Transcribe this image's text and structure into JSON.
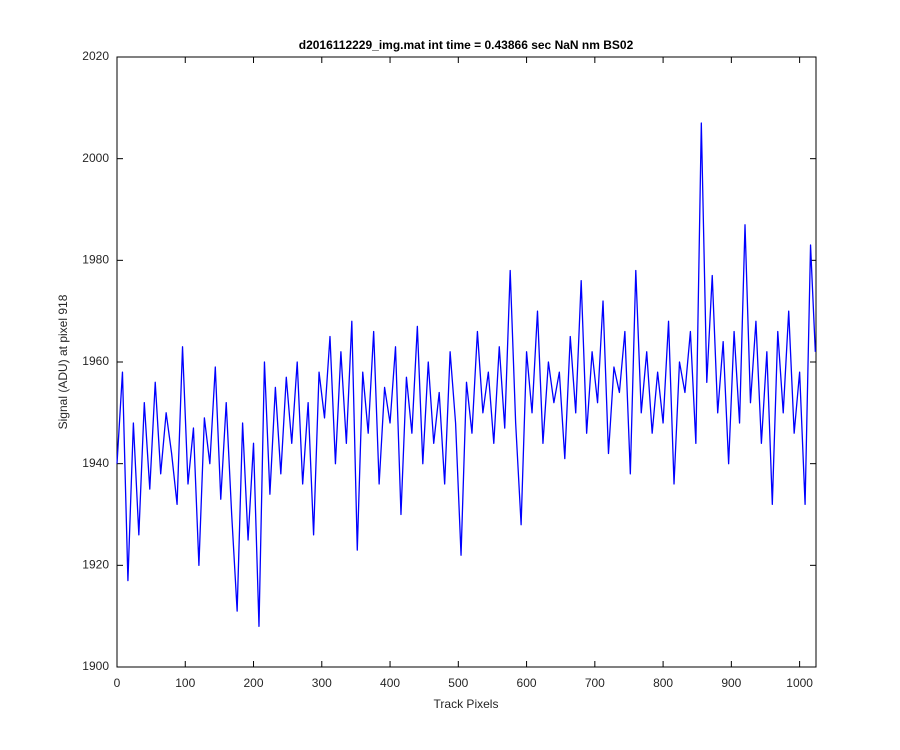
{
  "chart_data": {
    "type": "line",
    "title": "d2016112229_img.mat int time = 0.43866 sec  NaN nm BS02",
    "x_label": "Track Pixels",
    "y_label": "Signal (ADU) at pixel 918",
    "x": [
      0,
      8,
      16,
      24,
      32,
      40,
      48,
      56,
      64,
      72,
      80,
      88,
      96,
      104,
      112,
      120,
      128,
      136,
      144,
      152,
      160,
      168,
      176,
      184,
      192,
      200,
      208,
      216,
      224,
      232,
      240,
      248,
      256,
      264,
      272,
      280,
      288,
      296,
      304,
      312,
      320,
      328,
      336,
      344,
      352,
      360,
      368,
      376,
      384,
      392,
      400,
      408,
      416,
      424,
      432,
      440,
      448,
      456,
      464,
      472,
      480,
      488,
      496,
      504,
      512,
      520,
      528,
      536,
      544,
      552,
      560,
      568,
      576,
      584,
      592,
      600,
      608,
      616,
      624,
      632,
      640,
      648,
      656,
      664,
      672,
      680,
      688,
      696,
      704,
      712,
      720,
      728,
      736,
      744,
      752,
      760,
      768,
      776,
      784,
      792,
      800,
      808,
      816,
      824,
      832,
      840,
      848,
      856,
      864,
      872,
      880,
      888,
      896,
      904,
      912,
      920,
      928,
      936,
      944,
      952,
      960,
      968,
      976,
      984,
      992,
      1000,
      1008,
      1016,
      1023
    ],
    "series": [
      {
        "color": "#0000ff",
        "values": [
          1940,
          1958,
          1917,
          1948,
          1926,
          1952,
          1935,
          1956,
          1938,
          1950,
          1942,
          1932,
          1963,
          1936,
          1947,
          1920,
          1949,
          1940,
          1959,
          1933,
          1952,
          1930,
          1911,
          1948,
          1925,
          1944,
          1908,
          1960,
          1934,
          1955,
          1938,
          1957,
          1944,
          1960,
          1936,
          1952,
          1926,
          1958,
          1949,
          1965,
          1940,
          1962,
          1944,
          1968,
          1923,
          1958,
          1946,
          1966,
          1936,
          1955,
          1948,
          1963,
          1930,
          1957,
          1946,
          1967,
          1940,
          1960,
          1944,
          1954,
          1936,
          1962,
          1948,
          1922,
          1956,
          1946,
          1966,
          1950,
          1958,
          1944,
          1963,
          1947,
          1978,
          1948,
          1928,
          1962,
          1950,
          1970,
          1944,
          1960,
          1952,
          1958,
          1941,
          1965,
          1950,
          1976,
          1946,
          1962,
          1952,
          1972,
          1942,
          1959,
          1954,
          1966,
          1938,
          1978,
          1950,
          1962,
          1946,
          1958,
          1948,
          1968,
          1936,
          1960,
          1954,
          1966,
          1944,
          2007,
          1956,
          1977,
          1950,
          1964,
          1940,
          1966,
          1948,
          1987,
          1952,
          1968,
          1944,
          1962,
          1932,
          1966,
          1950,
          1970,
          1946,
          1958,
          1932,
          1983,
          1962
        ]
      }
    ],
    "xlim": [
      0,
      1024
    ],
    "ylim": [
      1900,
      2020
    ],
    "xticks": [
      0,
      100,
      200,
      300,
      400,
      500,
      600,
      700,
      800,
      900,
      1000
    ],
    "yticks": [
      1900,
      1920,
      1940,
      1960,
      1980,
      2000,
      2020
    ]
  }
}
